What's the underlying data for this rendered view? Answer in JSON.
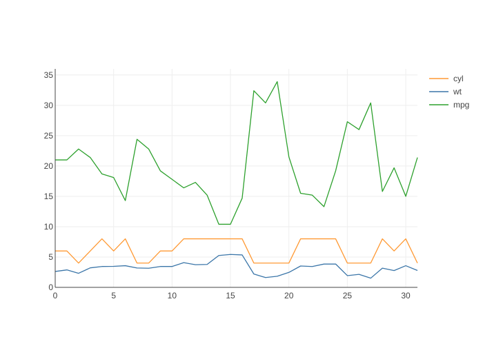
{
  "chart_data": {
    "type": "line",
    "title": "",
    "xlabel": "",
    "ylabel": "",
    "xlim": [
      0,
      31
    ],
    "ylim": [
      0,
      36
    ],
    "x_ticks": [
      0,
      5,
      10,
      15,
      20,
      25,
      30
    ],
    "y_ticks": [
      0,
      5,
      10,
      15,
      20,
      25,
      30,
      35
    ],
    "grid": true,
    "legend_position": "top-right",
    "x": [
      0,
      1,
      2,
      3,
      4,
      5,
      6,
      7,
      8,
      9,
      10,
      11,
      12,
      13,
      14,
      15,
      16,
      17,
      18,
      19,
      20,
      21,
      22,
      23,
      24,
      25,
      26,
      27,
      28,
      29,
      30,
      31
    ],
    "series": [
      {
        "name": "cyl",
        "color": "#ff9933",
        "values": [
          6,
          6,
          4,
          6,
          8,
          6,
          8,
          4,
          4,
          6,
          6,
          8,
          8,
          8,
          8,
          8,
          8,
          4,
          4,
          4,
          4,
          8,
          8,
          8,
          8,
          4,
          4,
          4,
          8,
          6,
          8,
          4
        ]
      },
      {
        "name": "wt",
        "color": "#3a75a8",
        "values": [
          2.62,
          2.875,
          2.32,
          3.215,
          3.44,
          3.46,
          3.57,
          3.19,
          3.15,
          3.44,
          3.44,
          4.07,
          3.73,
          3.78,
          5.25,
          5.424,
          5.345,
          2.2,
          1.615,
          1.835,
          2.465,
          3.52,
          3.435,
          3.84,
          3.845,
          1.935,
          2.14,
          1.513,
          3.17,
          2.77,
          3.57,
          2.78
        ]
      },
      {
        "name": "mpg",
        "color": "#2ca02c",
        "values": [
          21,
          21,
          22.8,
          21.4,
          18.7,
          18.1,
          14.3,
          24.4,
          22.8,
          19.2,
          17.8,
          16.4,
          17.3,
          15.2,
          10.4,
          10.4,
          14.7,
          32.4,
          30.4,
          33.9,
          21.5,
          15.5,
          15.2,
          13.3,
          19.2,
          27.3,
          26,
          30.4,
          15.8,
          19.7,
          15,
          21.4
        ]
      }
    ]
  }
}
